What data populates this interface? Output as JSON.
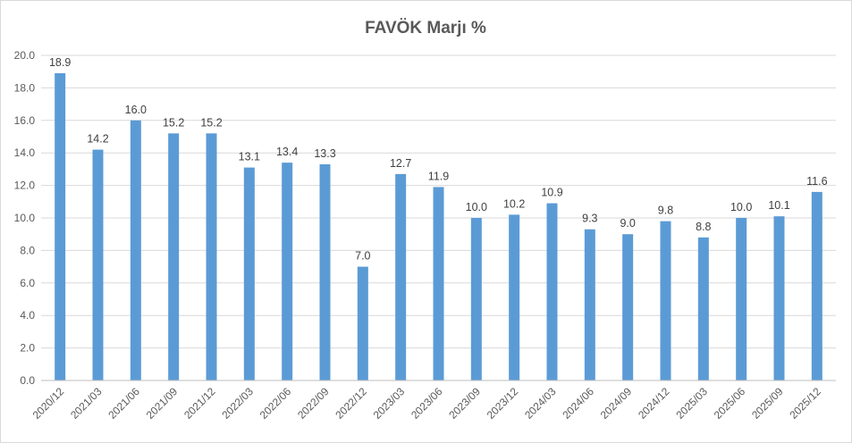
{
  "chart_data": {
    "type": "bar",
    "title": "FAVÖK Marjı %",
    "xlabel": "",
    "ylabel": "",
    "ylim": [
      0,
      20
    ],
    "y_ticks": [
      "0.0",
      "2.0",
      "4.0",
      "6.0",
      "8.0",
      "10.0",
      "12.0",
      "14.0",
      "16.0",
      "18.0",
      "20.0"
    ],
    "grid": true,
    "legend": "none",
    "bar_color": "#5b9bd5",
    "categories": [
      "2020/12",
      "2021/03",
      "2021/06",
      "2021/09",
      "2021/12",
      "2022/03",
      "2022/06",
      "2022/09",
      "2022/12",
      "2023/03",
      "2023/06",
      "2023/09",
      "2023/12",
      "2024/03",
      "2024/06",
      "2024/09",
      "2024/12",
      "2025/03",
      "2025/06",
      "2025/09",
      "2025/12"
    ],
    "values": [
      18.9,
      14.2,
      16.0,
      15.2,
      15.2,
      13.1,
      13.4,
      13.3,
      7.0,
      12.7,
      11.9,
      10.0,
      10.2,
      10.9,
      9.3,
      9.0,
      9.8,
      8.8,
      10.0,
      10.1,
      11.6
    ],
    "value_labels": [
      "18.9",
      "14.2",
      "16.0",
      "15.2",
      "15.2",
      "13.1",
      "13.4",
      "13.3",
      "7.0",
      "12.7",
      "11.9",
      "10.0",
      "10.2",
      "10.9",
      "9.3",
      "9.0",
      "9.8",
      "8.8",
      "10.0",
      "10.1",
      "11.6"
    ]
  }
}
